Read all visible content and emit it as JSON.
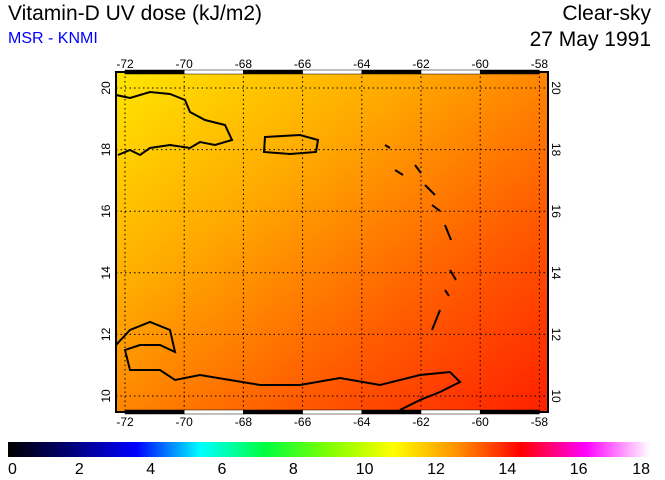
{
  "header": {
    "title": "Vitamin-D UV dose (kJ/m2)",
    "source": "MSR - KNMI",
    "condition": "Clear-sky",
    "date": "27 May 1991"
  },
  "map": {
    "lon_ticks": [
      "-72",
      "-70",
      "-68",
      "-66",
      "-64",
      "-62",
      "-60",
      "-58"
    ],
    "lat_ticks": [
      "20",
      "18",
      "16",
      "14",
      "12",
      "10"
    ],
    "colors": {
      "low": "#ffe000",
      "mid": "#ff9a00",
      "high": "#ff2a00"
    }
  },
  "colorbar": {
    "labels": [
      "0",
      "2",
      "4",
      "6",
      "8",
      "10",
      "12",
      "14",
      "16",
      "18"
    ],
    "stops": [
      "#000000",
      "#00007a",
      "#0000ff",
      "#00ffff",
      "#00ff40",
      "#80ff00",
      "#ffff00",
      "#ff9000",
      "#ff0000",
      "#ff00ff",
      "#ffffff"
    ]
  }
}
